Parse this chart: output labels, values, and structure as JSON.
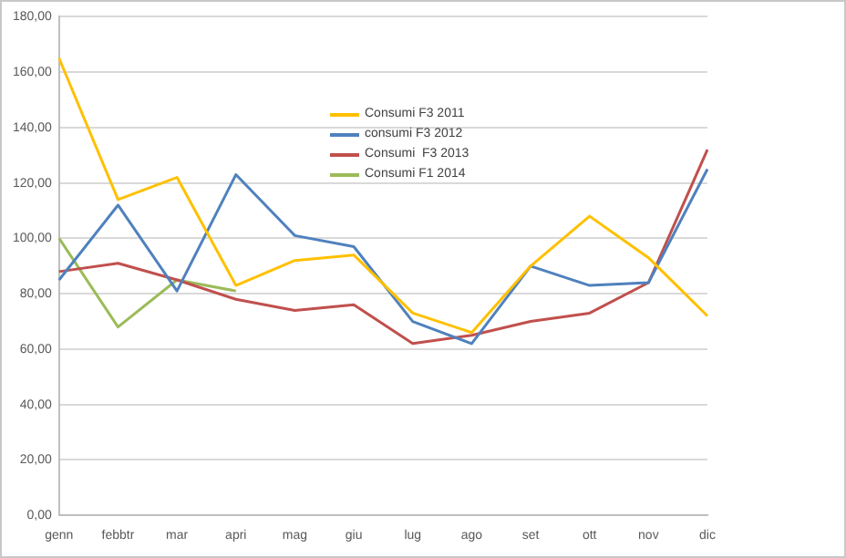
{
  "chart_data": {
    "type": "line",
    "categories": [
      "genn",
      "febbtr",
      "mar",
      "apri",
      "mag",
      "giu",
      "lug",
      "ago",
      "set",
      "ott",
      "nov",
      "dic"
    ],
    "series": [
      {
        "name": "Consumi F3 2011",
        "color": "#ffc000",
        "values": [
          165,
          114,
          122,
          83,
          92,
          94,
          73,
          66,
          90,
          108,
          93,
          72
        ]
      },
      {
        "name": "consumi F3 2012",
        "color": "#4f81bd",
        "values": [
          85,
          112,
          81,
          123,
          101,
          97,
          70,
          62,
          90,
          83,
          84,
          125
        ]
      },
      {
        "name": "Consumi  F3 2013",
        "color": "#c0504d",
        "values": [
          88,
          91,
          85,
          78,
          74,
          76,
          62,
          65,
          70,
          73,
          84,
          132
        ]
      },
      {
        "name": "Consumi F1 2014",
        "color": "#9bbb59",
        "values": [
          100,
          68,
          85,
          81,
          null,
          null,
          null,
          null,
          null,
          null,
          null,
          null
        ]
      }
    ],
    "ylim": [
      0,
      180
    ],
    "yticks": [
      {
        "value": 0,
        "label": "0,00"
      },
      {
        "value": 20,
        "label": "20,00"
      },
      {
        "value": 40,
        "label": "40,00"
      },
      {
        "value": 60,
        "label": "60,00"
      },
      {
        "value": 80,
        "label": "80,00"
      },
      {
        "value": 100,
        "label": "100,00"
      },
      {
        "value": 120,
        "label": "120,00"
      },
      {
        "value": 140,
        "label": "140,00"
      },
      {
        "value": 160,
        "label": "160,00"
      },
      {
        "value": 180,
        "label": "180,00"
      }
    ],
    "grid": "y",
    "legend": "top center",
    "marker": "none",
    "line_style": "solid"
  }
}
